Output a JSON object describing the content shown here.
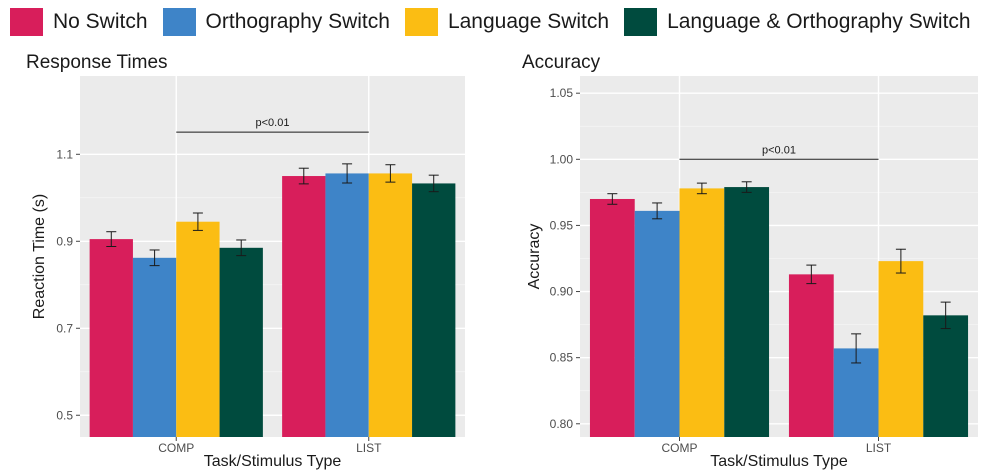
{
  "legend": [
    {
      "label": "No Switch",
      "color": "#d81e5b"
    },
    {
      "label": "Orthography Switch",
      "color": "#3e84c8"
    },
    {
      "label": "Language Switch",
      "color": "#fbbd13"
    },
    {
      "label": "Language & Orthography Switch",
      "color": "#004b3e"
    }
  ],
  "chart_data": [
    {
      "type": "bar",
      "title": "Response Times",
      "xlabel": "Task/Stimulus Type",
      "ylabel": "Reaction Time (s)",
      "categories": [
        "COMP",
        "LIST"
      ],
      "ylim": [
        0.45,
        1.28
      ],
      "yticks": [
        0.5,
        0.7,
        0.9,
        1.1
      ],
      "ytick_labels": [
        "0.5",
        "0.7",
        "0.9",
        "1.1"
      ],
      "grid": true,
      "series": [
        {
          "name": "No Switch",
          "values": [
            0.905,
            1.05
          ],
          "errors": [
            0.017,
            0.018
          ]
        },
        {
          "name": "Orthography Switch",
          "values": [
            0.862,
            1.056
          ],
          "errors": [
            0.018,
            0.022
          ]
        },
        {
          "name": "Language Switch",
          "values": [
            0.945,
            1.056
          ],
          "errors": [
            0.02,
            0.02
          ]
        },
        {
          "name": "Language & Orthography Switch",
          "values": [
            0.885,
            1.033
          ],
          "errors": [
            0.018,
            0.019
          ]
        }
      ],
      "annotation": {
        "text": "p<0.01",
        "y": 1.151,
        "from": "COMP",
        "to": "LIST"
      }
    },
    {
      "type": "bar",
      "title": "Accuracy",
      "xlabel": "Task/Stimulus Type",
      "ylabel": "Accuracy",
      "categories": [
        "COMP",
        "LIST"
      ],
      "ylim": [
        0.79,
        1.063
      ],
      "yticks": [
        0.8,
        0.85,
        0.9,
        0.95,
        1.0,
        1.05
      ],
      "ytick_labels": [
        "0.80",
        "0.85",
        "0.90",
        "0.95",
        "1.00",
        "1.05"
      ],
      "grid": true,
      "series": [
        {
          "name": "No Switch",
          "values": [
            0.97,
            0.913
          ],
          "errors": [
            0.004,
            0.007
          ]
        },
        {
          "name": "Orthography Switch",
          "values": [
            0.961,
            0.857
          ],
          "errors": [
            0.006,
            0.011
          ]
        },
        {
          "name": "Language Switch",
          "values": [
            0.978,
            0.923
          ],
          "errors": [
            0.004,
            0.009
          ]
        },
        {
          "name": "Language & Orthography Switch",
          "values": [
            0.979,
            0.882
          ],
          "errors": [
            0.004,
            0.01
          ]
        }
      ],
      "annotation": {
        "text": "p<0.01",
        "y": 1.0,
        "from": "COMP",
        "to": "LIST"
      }
    }
  ]
}
